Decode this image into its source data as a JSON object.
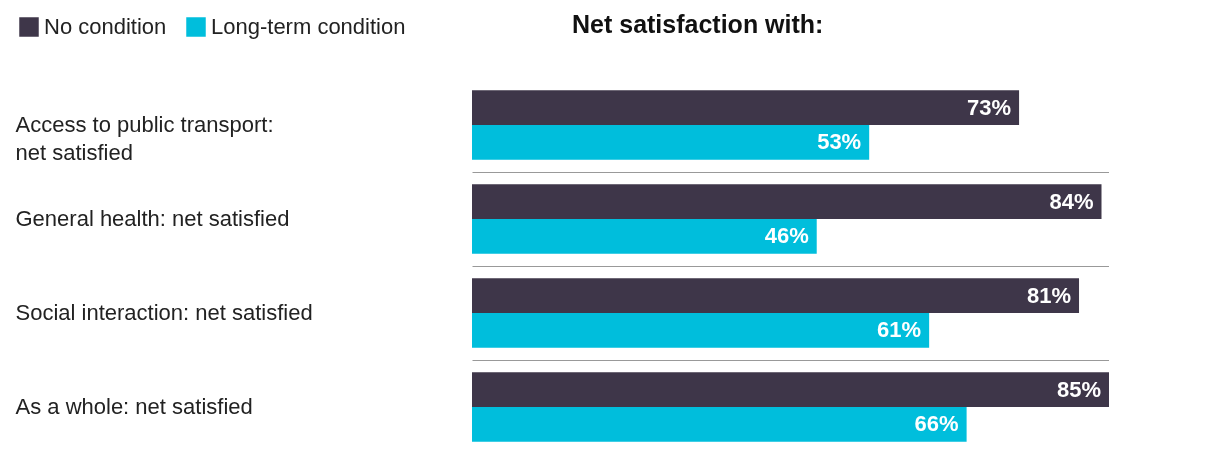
{
  "chart_data": {
    "type": "bar",
    "orientation": "horizontal",
    "title": "Net satisfaction with:",
    "categories": [
      "Access to public transport: net satisfied",
      "General health: net satisfied",
      "Social interaction: net satisfied",
      "As a whole: net satisfied"
    ],
    "series": [
      {
        "name": "No condition",
        "color": "#3e3649",
        "values": [
          73,
          84,
          81,
          85
        ],
        "value_labels": [
          "73%",
          "84%",
          "81%",
          "85%"
        ]
      },
      {
        "name": "Long-term condition",
        "color": "#00bedc",
        "values": [
          53,
          46,
          61,
          66
        ],
        "value_labels": [
          "53%",
          "46%",
          "61%",
          "66%"
        ]
      }
    ],
    "tick_labels": "y",
    "grid": "y",
    "legend": "top left"
  }
}
